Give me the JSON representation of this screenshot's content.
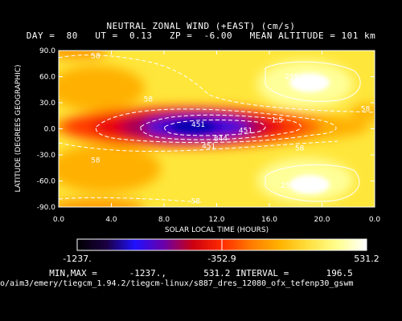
{
  "title_line1": "NEUTRAL ZONAL WIND (+EAST) (cm/s)",
  "title_line2": {
    "day": "DAY =  80",
    "ut": "UT =  0.13",
    "zp": "ZP =  -6.00",
    "alt": "MEAN ALTITUDE = 101 km"
  },
  "footer": {
    "minmax_label": "MIN,MAX =",
    "min": "-1237.,",
    "max": "531.2",
    "interval_label": "INTERVAL =",
    "interval": "196.5",
    "path": "o/aim3/emery/tiegcm_1.94.2/tiegcm-linux/s887_dres_12080_ofx_tefenp30_gswm"
  },
  "chart_data": {
    "type": "heatmap",
    "title": "NEUTRAL ZONAL WIND (+EAST) (cm/s)",
    "xlabel": "SOLAR LOCAL TIME (HOURS)",
    "ylabel": "LATITUDE (DEGREES GEOGRAPHIC)",
    "xlim": [
      0,
      24
    ],
    "ylim": [
      -90,
      90
    ],
    "x_ticks": [
      "0.0",
      "4.0",
      "8.0",
      "12.0",
      "16.0",
      "20.0",
      "0.0"
    ],
    "x_tick_values": [
      0,
      4,
      8,
      12,
      16,
      20,
      24
    ],
    "y_ticks": [
      "90.0",
      "60.0",
      "30.0",
      "0.0",
      "-30.0",
      "-60.0",
      "-90.0"
    ],
    "y_tick_values": [
      90,
      60,
      30,
      0,
      -30,
      -60,
      -90
    ],
    "min": -1237.0,
    "max": 531.2,
    "interval": 196.5,
    "colorbar": {
      "labels": [
        "-1237.",
        "-352.9",
        "531.2"
      ],
      "values": [
        -1237.0,
        -352.9,
        531.2
      ],
      "colors": [
        "#000000",
        "#1a0040",
        "#2010ff",
        "#6a00a8",
        "#cc0010",
        "#ff2a00",
        "#ff7a00",
        "#ffb200",
        "#ffe040",
        "#ffff90",
        "#ffffff"
      ]
    },
    "contour_labels": [
      {
        "text": "58",
        "x": 2.8,
        "y": 84
      },
      {
        "text": "58",
        "x": 6.8,
        "y": 34
      },
      {
        "text": "451",
        "x": 10.6,
        "y": 5
      },
      {
        "text": "1.5",
        "x": 16.6,
        "y": 10
      },
      {
        "text": "451",
        "x": 14.2,
        "y": -2
      },
      {
        "text": "844",
        "x": 12.3,
        "y": -11
      },
      {
        "text": "451",
        "x": 11.4,
        "y": -20
      },
      {
        "text": "58",
        "x": 18.3,
        "y": -22
      },
      {
        "text": "58",
        "x": 2.8,
        "y": -36
      },
      {
        "text": "58",
        "x": 10.4,
        "y": -83
      },
      {
        "text": "58",
        "x": 23.3,
        "y": 23
      },
      {
        "text": "255",
        "x": 17.7,
        "y": 60
      },
      {
        "text": "255",
        "x": 17.4,
        "y": -65
      }
    ],
    "field_features": [
      {
        "kind": "min",
        "x": 12.2,
        "y": -2,
        "value": -1237.0
      },
      {
        "kind": "max",
        "x": 19.0,
        "y": 55,
        "value": 531.2
      },
      {
        "kind": "max",
        "x": 19.0,
        "y": -65,
        "value": 500
      }
    ],
    "grid": false
  }
}
